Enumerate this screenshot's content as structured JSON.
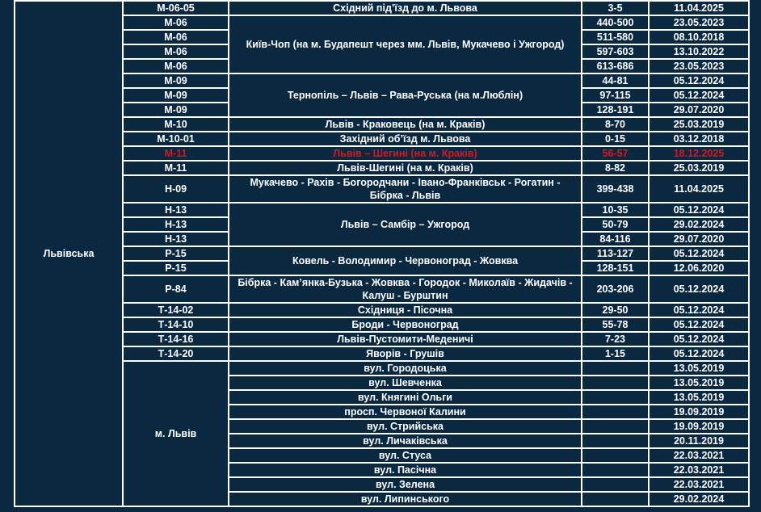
{
  "region": "Львівська",
  "highlight_color": "#e0141e",
  "groups": [
    {
      "name": "Східний під’їзд до м. Львова",
      "segments": [
        {
          "code": "М-06-05",
          "km": "3-5",
          "date": "11.04.2025"
        }
      ]
    },
    {
      "name": "Київ-Чоп (на м. Будапешт через мм. Львів, Мукачево і Ужгород)",
      "segments": [
        {
          "code": "М-06",
          "km": "440-500",
          "date": "23.05.2023"
        },
        {
          "code": "М-06",
          "km": "511-580",
          "date": "08.10.2018"
        },
        {
          "code": "М-06",
          "km": "597-603",
          "date": "13.10.2022"
        },
        {
          "code": "М-06",
          "km": "613-686",
          "date": "23.05.2023"
        }
      ]
    },
    {
      "name": "Тернопіль – Львів – Рава-Руська (на м.Люблін)",
      "segments": [
        {
          "code": "М-09",
          "km": "44-81",
          "date": "05.12.2024"
        },
        {
          "code": "М-09",
          "km": "97-115",
          "date": "05.12.2024"
        },
        {
          "code": "М-09",
          "km": "128-191",
          "date": "29.07.2020"
        }
      ]
    },
    {
      "name": "Львів - Краковець (на м. Краків)",
      "segments": [
        {
          "code": "М-10",
          "km": "8-70",
          "date": "25.03.2019"
        }
      ]
    },
    {
      "name": "Західний об’їзд м. Львова",
      "segments": [
        {
          "code": "М-10-01",
          "km": "0-15",
          "date": "03.12.2018"
        }
      ]
    },
    {
      "name": "Львів – Шегині (на м. Краків)",
      "highlight": true,
      "segments": [
        {
          "code": "М-11",
          "km": "56-57",
          "date": "18.12.2025"
        }
      ]
    },
    {
      "name": "Львів-Шегині (на м. Краків)",
      "segments": [
        {
          "code": "М-11",
          "km": "8-82",
          "date": "25.03.2019"
        }
      ]
    },
    {
      "name": "Мукачево - Рахів - Богородчани - Івано-Франківськ - Рогатин - Бібрка - Львів",
      "two_line": true,
      "segments": [
        {
          "code": "Н-09",
          "km": "399-438",
          "date": "11.04.2025"
        }
      ]
    },
    {
      "name": "Львів – Самбір – Ужгород",
      "segments": [
        {
          "code": "Н-13",
          "km": "10-35",
          "date": "05.12.2024"
        },
        {
          "code": "Н-13",
          "km": "50-79",
          "date": "29.02.2024"
        },
        {
          "code": "Н-13",
          "km": "84-116",
          "date": "29.07.2020"
        }
      ]
    },
    {
      "name": "Ковель - Володимир - Червоноград - Жовква",
      "segments": [
        {
          "code": "Р-15",
          "km": "113-127",
          "date": "05.12.2024"
        },
        {
          "code": "Р-15",
          "km": "128-151",
          "date": "12.06.2020"
        }
      ]
    },
    {
      "name": "Бібрка - Кам’янка-Бузька - Жовква - Городок - Миколаїв - Жидачів - Калуш - Бурштин",
      "two_line": true,
      "segments": [
        {
          "code": "Р-84",
          "km": "203-206",
          "date": "05.12.2024"
        }
      ]
    },
    {
      "name": "Східниця - Пісочна",
      "segments": [
        {
          "code": "Т-14-02",
          "km": "29-50",
          "date": "05.12.2024"
        }
      ]
    },
    {
      "name": "Броди - Червоноград",
      "segments": [
        {
          "code": "Т-14-10",
          "km": "55-78",
          "date": "05.12.2024"
        }
      ]
    },
    {
      "name": "Львів-Пустомити-Меденичі",
      "segments": [
        {
          "code": "Т-14-16",
          "km": "7-23",
          "date": "05.12.2024"
        }
      ]
    },
    {
      "name": "Яворів - Грушів",
      "segments": [
        {
          "code": "Т-14-20",
          "km": "1-15",
          "date": "05.12.2024"
        }
      ]
    }
  ],
  "city": {
    "label": "м. Львів",
    "streets": [
      {
        "name": "вул. Городоцька",
        "km": "",
        "date": "13.05.2019"
      },
      {
        "name": "вул. Шевченка",
        "km": "",
        "date": "13.05.2019"
      },
      {
        "name": "вул. Княгині Ольги",
        "km": "",
        "date": "13.05.2019"
      },
      {
        "name": "просп. Червоної Калини",
        "km": "",
        "date": "19.09.2019"
      },
      {
        "name": "вул. Стрийська",
        "km": "",
        "date": "19.09.2019"
      },
      {
        "name": "вул. Личаківська",
        "km": "",
        "date": "20.11.2019"
      },
      {
        "name": "вул. Стуса",
        "km": "",
        "date": "22.03.2021"
      },
      {
        "name": "вул. Пасічна",
        "km": "",
        "date": "22.03.2021"
      },
      {
        "name": "вул. Зелена",
        "km": "",
        "date": "22.03.2021"
      },
      {
        "name": "вул. Липинського",
        "km": "",
        "date": "29.02.2024"
      }
    ]
  }
}
